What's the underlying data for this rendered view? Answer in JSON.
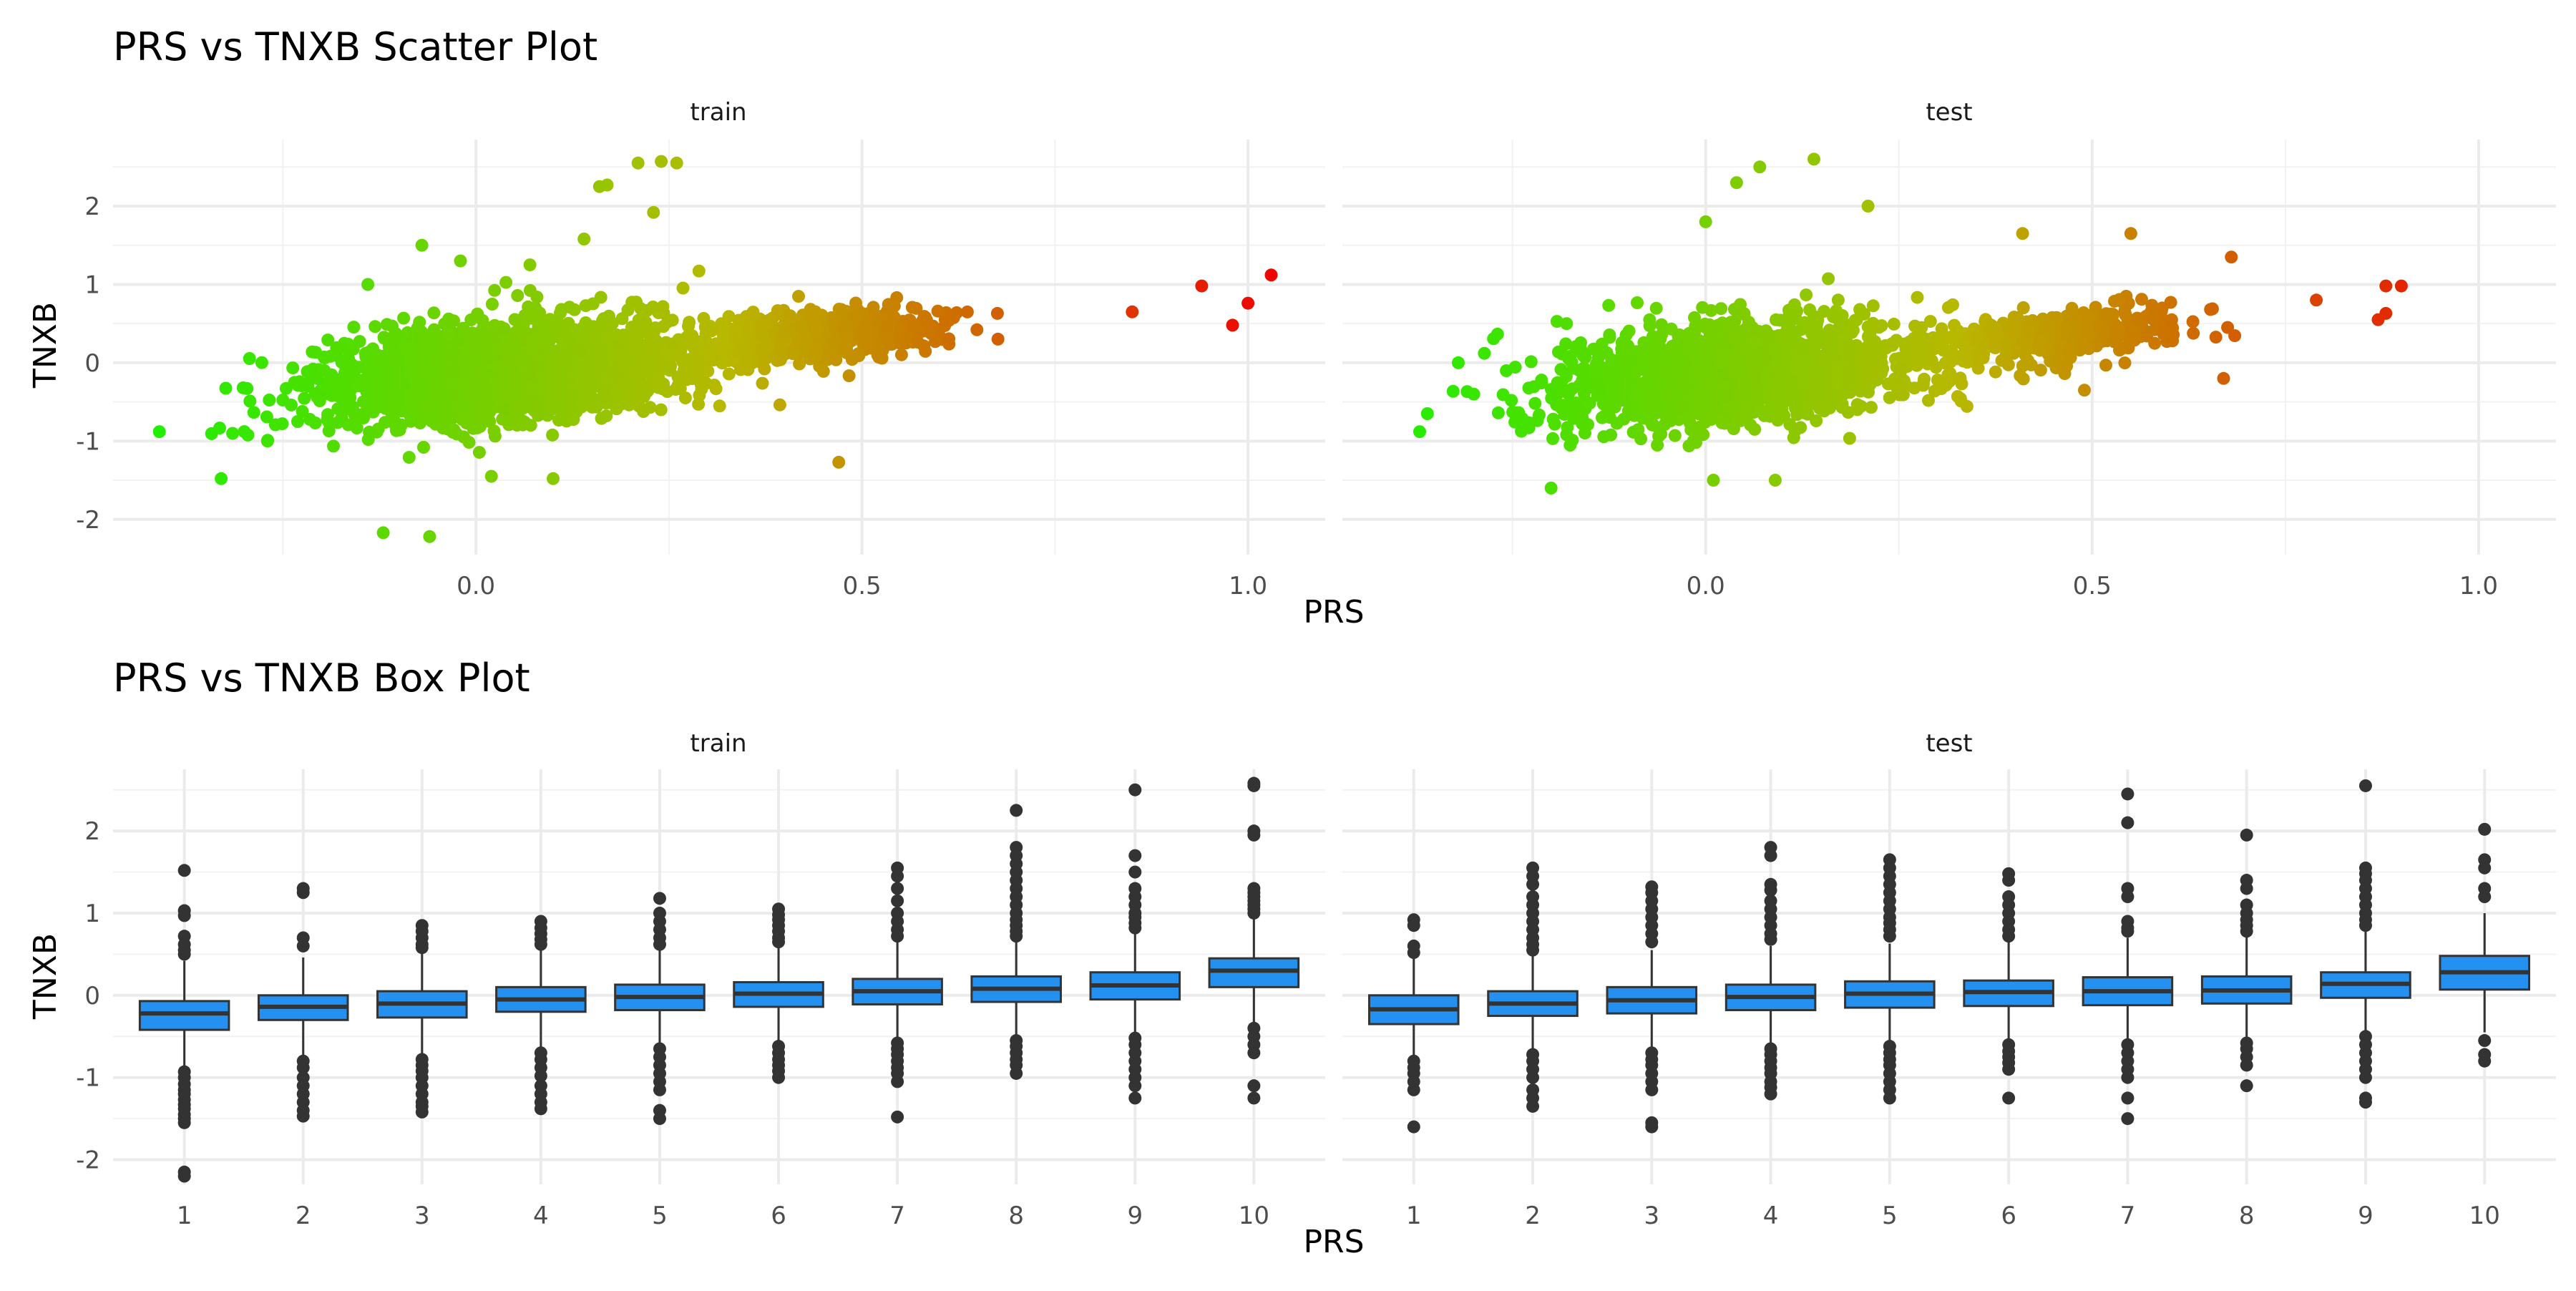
{
  "chart_data": [
    {
      "type": "scatter",
      "title": "PRS vs TNXB Scatter Plot",
      "xlabel": "PRS",
      "ylabel": "TNXB",
      "facets": [
        "train",
        "test"
      ],
      "xlim": [
        -0.47,
        1.1
      ],
      "ylim": [
        -2.45,
        2.85
      ],
      "x_ticks": [
        "0.0",
        "0.5",
        "1.0"
      ],
      "x_tick_values": [
        0.0,
        0.5,
        1.0
      ],
      "y_ticks": [
        "2",
        "1",
        "0",
        "-1",
        "-2"
      ],
      "y_tick_values": [
        2,
        1,
        0,
        -1,
        -2
      ],
      "grid": true,
      "legend": "none",
      "color_scale": {
        "low": "#22ee00",
        "mid": "#b8b800",
        "high": "#ee0000",
        "domain": [
          -0.4,
          1.05
        ]
      },
      "series": [
        {
          "facet": "train",
          "cluster": {
            "n": 2500,
            "seed": 11
          },
          "points": [
            {
              "x": -0.41,
              "y": -0.88
            },
            {
              "x": -0.33,
              "y": -1.48
            },
            {
              "x": -0.27,
              "y": -1.0
            },
            {
              "x": -0.12,
              "y": -2.17
            },
            {
              "x": -0.06,
              "y": -2.22
            },
            {
              "x": -0.14,
              "y": 1.0
            },
            {
              "x": -0.07,
              "y": 1.5
            },
            {
              "x": 0.14,
              "y": 1.58
            },
            {
              "x": 0.17,
              "y": 2.27
            },
            {
              "x": 0.16,
              "y": 2.25
            },
            {
              "x": 0.21,
              "y": 2.55
            },
            {
              "x": 0.24,
              "y": 2.57
            },
            {
              "x": 0.26,
              "y": 2.55
            },
            {
              "x": 0.23,
              "y": 1.92
            },
            {
              "x": 0.47,
              "y": -1.27
            },
            {
              "x": 0.85,
              "y": 0.65
            },
            {
              "x": 0.94,
              "y": 0.98
            },
            {
              "x": 0.98,
              "y": 0.48
            },
            {
              "x": 1.0,
              "y": 0.76
            },
            {
              "x": 1.03,
              "y": 1.12
            },
            {
              "x": 0.02,
              "y": -1.45
            },
            {
              "x": 0.1,
              "y": -1.48
            },
            {
              "x": -0.02,
              "y": 1.3
            },
            {
              "x": 0.07,
              "y": 1.25
            }
          ]
        },
        {
          "facet": "test",
          "cluster": {
            "n": 1900,
            "seed": 29
          },
          "points": [
            {
              "x": -0.37,
              "y": -0.88
            },
            {
              "x": -0.32,
              "y": 0.0
            },
            {
              "x": -0.3,
              "y": -0.4
            },
            {
              "x": -0.2,
              "y": -1.6
            },
            {
              "x": -0.18,
              "y": 0.5
            },
            {
              "x": 0.01,
              "y": -1.5
            },
            {
              "x": 0.09,
              "y": -1.5
            },
            {
              "x": 0.07,
              "y": 2.5
            },
            {
              "x": 0.04,
              "y": 2.3
            },
            {
              "x": 0.14,
              "y": 2.6
            },
            {
              "x": 0.21,
              "y": 2.0
            },
            {
              "x": 0.0,
              "y": 1.8
            },
            {
              "x": 0.41,
              "y": 1.65
            },
            {
              "x": 0.55,
              "y": 1.65
            },
            {
              "x": 0.67,
              "y": -0.2
            },
            {
              "x": 0.49,
              "y": -0.35
            },
            {
              "x": 0.79,
              "y": 0.8
            },
            {
              "x": 0.87,
              "y": 0.55
            },
            {
              "x": 0.88,
              "y": 0.98
            },
            {
              "x": 0.88,
              "y": 0.63
            },
            {
              "x": 0.9,
              "y": 0.98
            },
            {
              "x": 0.68,
              "y": 1.35
            }
          ]
        }
      ]
    },
    {
      "type": "box",
      "title": "PRS vs TNXB Box Plot",
      "xlabel": "PRS",
      "ylabel": "TNXB",
      "facets": [
        "train",
        "test"
      ],
      "categories": [
        "1",
        "2",
        "3",
        "4",
        "5",
        "6",
        "7",
        "8",
        "9",
        "10"
      ],
      "ylim": [
        -2.3,
        2.75
      ],
      "y_ticks": [
        "2",
        "1",
        "0",
        "-1",
        "-2"
      ],
      "y_tick_values": [
        2,
        1,
        0,
        -1,
        -2
      ],
      "grid": true,
      "legend": "none",
      "box_fill": "#2490f0",
      "series": [
        {
          "facet": "train",
          "boxes": [
            {
              "q1": -0.42,
              "median": -0.22,
              "q3": -0.07,
              "whisker_low": -0.88,
              "whisker_high": 0.42,
              "outliers": [
                1.52,
                1.03,
                0.97,
                0.72,
                0.62,
                0.55,
                0.5,
                -0.93,
                -1.0,
                -1.08,
                -1.15,
                -1.2,
                -1.27,
                -1.33,
                -1.38,
                -1.45,
                -1.5,
                -1.55,
                -2.15,
                -2.2
              ]
            },
            {
              "q1": -0.3,
              "median": -0.14,
              "q3": 0.0,
              "whisker_low": -0.75,
              "whisker_high": 0.46,
              "outliers": [
                1.3,
                1.25,
                0.7,
                0.6,
                -0.8,
                -0.88,
                -1.0,
                -1.1,
                -1.2,
                -1.3,
                -1.4,
                -1.47
              ]
            },
            {
              "q1": -0.27,
              "median": -0.1,
              "q3": 0.05,
              "whisker_low": -0.73,
              "whisker_high": 0.52,
              "outliers": [
                0.85,
                0.78,
                0.7,
                0.62,
                0.58,
                -0.78,
                -0.85,
                -0.92,
                -1.0,
                -1.1,
                -1.2,
                -1.3,
                -1.35,
                -1.42
              ]
            },
            {
              "q1": -0.2,
              "median": -0.05,
              "q3": 0.1,
              "whisker_low": -0.64,
              "whisker_high": 0.55,
              "outliers": [
                0.9,
                0.82,
                0.75,
                0.68,
                0.62,
                -0.7,
                -0.78,
                -0.88,
                -0.98,
                -1.1,
                -1.2,
                -1.3,
                -1.38
              ]
            },
            {
              "q1": -0.18,
              "median": -0.02,
              "q3": 0.13,
              "whisker_low": -0.62,
              "whisker_high": 0.58,
              "outliers": [
                1.18,
                1.0,
                0.9,
                0.8,
                0.7,
                0.62,
                -0.65,
                -0.75,
                -0.85,
                -0.95,
                -1.05,
                -1.15,
                -1.4,
                -1.5
              ]
            },
            {
              "q1": -0.14,
              "median": 0.02,
              "q3": 0.16,
              "whisker_low": -0.58,
              "whisker_high": 0.6,
              "outliers": [
                1.05,
                0.98,
                0.92,
                0.85,
                0.78,
                0.7,
                0.65,
                -0.62,
                -0.7,
                -0.78,
                -0.85,
                -0.92,
                -1.0
              ]
            },
            {
              "q1": -0.11,
              "median": 0.05,
              "q3": 0.2,
              "whisker_low": -0.55,
              "whisker_high": 0.65,
              "outliers": [
                1.55,
                1.45,
                1.3,
                1.15,
                1.0,
                0.9,
                0.8,
                0.72,
                -0.58,
                -0.65,
                -0.72,
                -0.8,
                -0.88,
                -0.95,
                -1.05,
                -1.48
              ]
            },
            {
              "q1": -0.08,
              "median": 0.08,
              "q3": 0.23,
              "whisker_low": -0.5,
              "whisker_high": 0.68,
              "outliers": [
                2.25,
                1.8,
                1.7,
                1.6,
                1.5,
                1.4,
                1.3,
                1.2,
                1.1,
                1.0,
                0.92,
                0.85,
                0.78,
                0.72,
                -0.55,
                -0.62,
                -0.7,
                -0.78,
                -0.85,
                -0.95
              ]
            },
            {
              "q1": -0.05,
              "median": 0.12,
              "q3": 0.28,
              "whisker_low": -0.48,
              "whisker_high": 0.75,
              "outliers": [
                2.5,
                1.7,
                1.5,
                1.3,
                1.2,
                1.1,
                1.0,
                0.95,
                0.88,
                0.82,
                -0.52,
                -0.6,
                -0.7,
                -0.8,
                -0.9,
                -1.0,
                -1.1,
                -1.25
              ]
            },
            {
              "q1": 0.1,
              "median": 0.3,
              "q3": 0.45,
              "whisker_low": -0.38,
              "whisker_high": 0.95,
              "outliers": [
                2.58,
                2.55,
                2.0,
                1.95,
                1.3,
                1.25,
                1.2,
                1.15,
                1.1,
                1.05,
                1.0,
                -0.4,
                -0.5,
                -0.6,
                -0.7,
                -1.1,
                -1.25
              ]
            }
          ]
        },
        {
          "facet": "test",
          "boxes": [
            {
              "q1": -0.35,
              "median": -0.17,
              "q3": 0.0,
              "whisker_low": -0.75,
              "whisker_high": 0.45,
              "outliers": [
                0.92,
                0.85,
                0.6,
                0.52,
                -0.8,
                -0.88,
                -0.95,
                -1.05,
                -1.15,
                -1.6
              ]
            },
            {
              "q1": -0.25,
              "median": -0.1,
              "q3": 0.05,
              "whisker_low": -0.68,
              "whisker_high": 0.5,
              "outliers": [
                1.55,
                1.45,
                1.35,
                1.2,
                1.1,
                1.0,
                0.9,
                0.8,
                0.7,
                0.62,
                0.55,
                -0.72,
                -0.8,
                -0.9,
                -1.0,
                -1.15,
                -1.25,
                -1.35
              ]
            },
            {
              "q1": -0.22,
              "median": -0.06,
              "q3": 0.1,
              "whisker_low": -0.65,
              "whisker_high": 0.55,
              "outliers": [
                1.32,
                1.25,
                1.15,
                1.05,
                0.95,
                0.85,
                0.75,
                0.65,
                -0.7,
                -0.78,
                -0.85,
                -0.95,
                -1.05,
                -1.15,
                -1.55,
                -1.6
              ]
            },
            {
              "q1": -0.18,
              "median": -0.02,
              "q3": 0.13,
              "whisker_low": -0.6,
              "whisker_high": 0.6,
              "outliers": [
                1.8,
                1.7,
                1.35,
                1.28,
                1.15,
                1.05,
                0.95,
                0.85,
                0.75,
                0.68,
                -0.65,
                -0.72,
                -0.8,
                -0.88,
                -0.95,
                -1.05,
                -1.12,
                -1.2
              ]
            },
            {
              "q1": -0.15,
              "median": 0.02,
              "q3": 0.17,
              "whisker_low": -0.58,
              "whisker_high": 0.63,
              "outliers": [
                1.65,
                1.55,
                1.45,
                1.35,
                1.25,
                1.15,
                1.05,
                0.95,
                0.88,
                0.8,
                0.72,
                -0.62,
                -0.7,
                -0.78,
                -0.85,
                -0.95,
                -1.05,
                -1.15,
                -1.25
              ]
            },
            {
              "q1": -0.13,
              "median": 0.04,
              "q3": 0.18,
              "whisker_low": -0.56,
              "whisker_high": 0.65,
              "outliers": [
                1.48,
                1.4,
                1.2,
                1.1,
                1.0,
                0.9,
                0.8,
                0.72,
                -0.6,
                -0.68,
                -0.75,
                -0.82,
                -0.9,
                -1.25
              ]
            },
            {
              "q1": -0.12,
              "median": 0.05,
              "q3": 0.22,
              "whisker_low": -0.55,
              "whisker_high": 0.7,
              "outliers": [
                2.45,
                2.1,
                1.3,
                1.2,
                0.9,
                0.82,
                0.78,
                -0.6,
                -0.7,
                -0.8,
                -0.9,
                -1.0,
                -1.25,
                -1.5
              ]
            },
            {
              "q1": -0.1,
              "median": 0.06,
              "q3": 0.23,
              "whisker_low": -0.52,
              "whisker_high": 0.72,
              "outliers": [
                1.95,
                1.4,
                1.3,
                1.1,
                1.0,
                0.92,
                0.85,
                0.78,
                -0.58,
                -0.65,
                -0.75,
                -0.85,
                -1.1
              ]
            },
            {
              "q1": -0.03,
              "median": 0.14,
              "q3": 0.28,
              "whisker_low": -0.45,
              "whisker_high": 0.8,
              "outliers": [
                2.55,
                1.55,
                1.48,
                1.4,
                1.3,
                1.2,
                1.1,
                1.0,
                0.92,
                0.85,
                -0.5,
                -0.6,
                -0.7,
                -0.8,
                -0.9,
                -1.0,
                -1.25,
                -1.3
              ]
            },
            {
              "q1": 0.07,
              "median": 0.28,
              "q3": 0.48,
              "whisker_low": -0.45,
              "whisker_high": 1.0,
              "outliers": [
                2.02,
                1.65,
                1.55,
                1.3,
                1.2,
                -0.55,
                -0.72,
                -0.8
              ]
            }
          ]
        }
      ]
    }
  ]
}
